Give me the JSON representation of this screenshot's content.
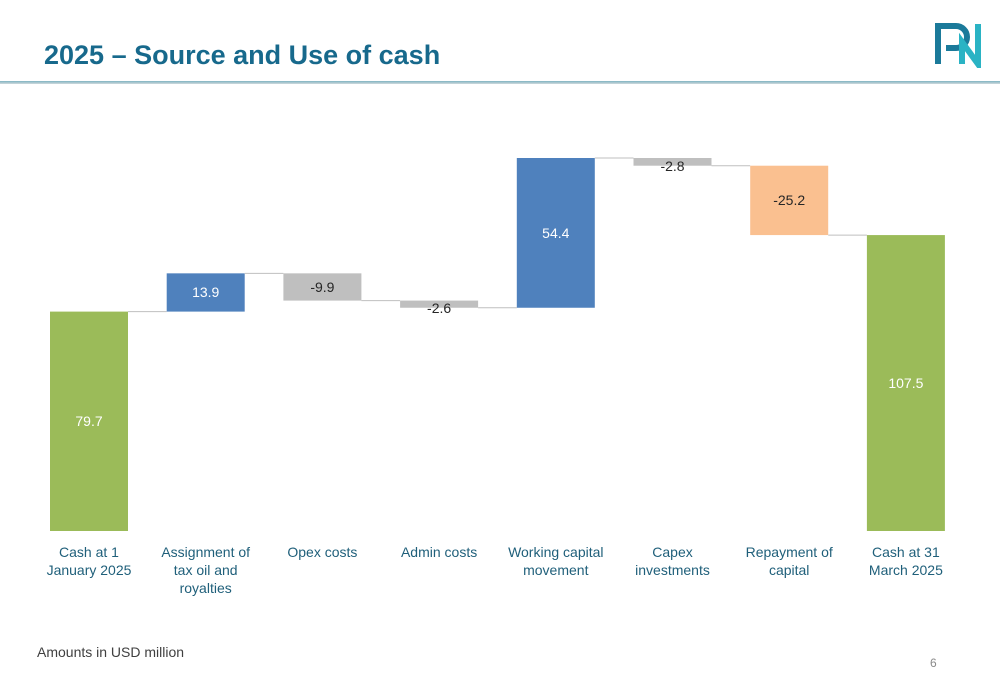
{
  "page": {
    "title": "2025 – Source and Use of cash",
    "footnote": "Amounts in USD million",
    "page_number": "6"
  },
  "chart_data": {
    "type": "waterfall",
    "categories": [
      "Cash at 1 January 2025",
      "Assignment of tax oil and royalties",
      "Opex costs",
      "Admin costs",
      "Working capital movement",
      "Capex investments",
      "Repayment of capital",
      "Cash at 31 March 2025"
    ],
    "values": [
      79.7,
      13.9,
      -9.9,
      -2.6,
      54.4,
      -2.8,
      -25.2,
      107.5
    ],
    "colors": [
      "#9bbb59",
      "#4f81bd",
      "#bfbfbf",
      "#bfbfbf",
      "#4f81bd",
      "#bfbfbf",
      "#fac090",
      "#9bbb59"
    ]
  }
}
